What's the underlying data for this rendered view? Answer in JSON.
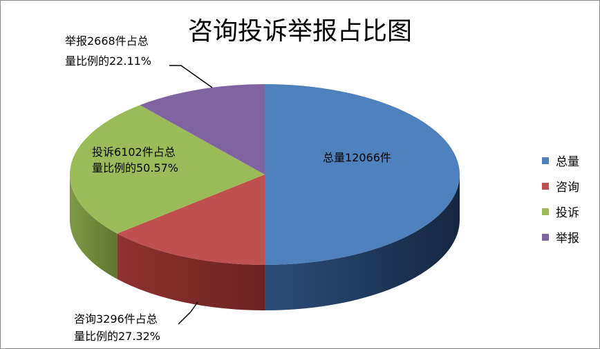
{
  "chart_data": {
    "type": "pie",
    "title": "咨询投诉举报占比图",
    "categories": [
      "总量",
      "咨询",
      "投诉",
      "举报"
    ],
    "values": [
      12066,
      3296,
      6102,
      2668
    ],
    "colors": [
      "#4f81bd",
      "#c0504d",
      "#9bbb59",
      "#8064a2"
    ],
    "data_labels": {
      "total": "总量12066件",
      "consult": [
        "咨询3296件占总",
        "量比例的27.32%"
      ],
      "complaint": [
        "投诉6102件占总",
        "量比例的50.57%"
      ],
      "report": [
        "举报2668件占总",
        "量比例的22.11%"
      ]
    },
    "legend_position": "right"
  }
}
